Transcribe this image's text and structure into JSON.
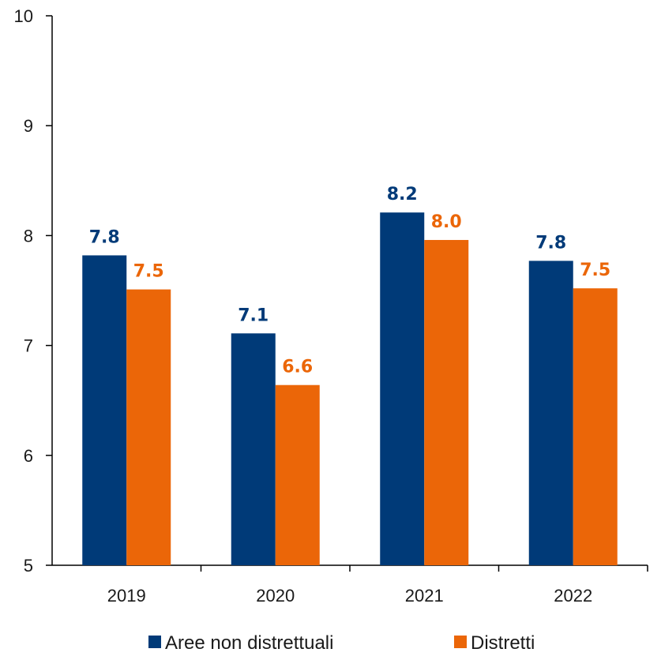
{
  "chart_data": {
    "type": "bar",
    "categories": [
      "2019",
      "2020",
      "2021",
      "2022"
    ],
    "series": [
      {
        "name": "Aree non distrettuali",
        "color": "#003A78",
        "values": [
          7.82,
          7.11,
          8.21,
          7.77
        ],
        "labels": [
          "7.8",
          "7.1",
          "8.2",
          "7.8"
        ]
      },
      {
        "name": "Distretti",
        "color": "#EB6608",
        "values": [
          7.51,
          6.64,
          7.96,
          7.52
        ],
        "labels": [
          "7.5",
          "6.6",
          "8.0",
          "7.5"
        ]
      }
    ],
    "ylim": [
      5,
      10
    ],
    "yticks": [
      "5",
      "6",
      "7",
      "8",
      "9",
      "10"
    ],
    "title": "",
    "xlabel": "",
    "ylabel": "",
    "grid": false,
    "legend": "bottom"
  }
}
